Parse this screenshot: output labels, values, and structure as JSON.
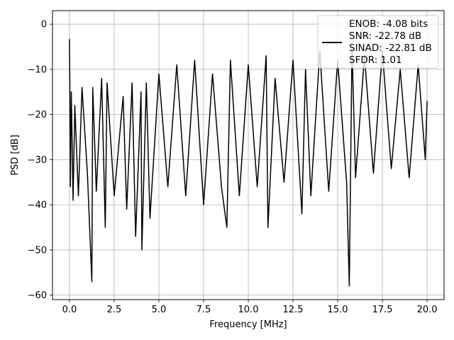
{
  "chart_data": {
    "type": "line",
    "xlabel": "Frequency [MHz]",
    "ylabel": "PSD [dB]",
    "xlim": [
      -0.95,
      20.95
    ],
    "ylim": [
      -61,
      3
    ],
    "xticks": [
      0.0,
      2.5,
      5.0,
      7.5,
      10.0,
      12.5,
      15.0,
      17.5,
      20.0
    ],
    "xtick_labels": [
      "0.0",
      "2.5",
      "5.0",
      "7.5",
      "10.0",
      "12.5",
      "15.0",
      "17.5",
      "20.0"
    ],
    "yticks": [
      0,
      -10,
      -20,
      -30,
      -40,
      -50,
      -60
    ],
    "ytick_labels": [
      "0",
      "−10",
      "−20",
      "−30",
      "−40",
      "−50",
      "−60"
    ],
    "grid": true,
    "legend_placement": "top-right",
    "legend_lines": [
      "ENOB: -4.08 bits",
      "SNR: -22.78 dB",
      "SINAD: -22.81 dB",
      "SFDR: 1.01"
    ],
    "series": [
      {
        "color": "#000000",
        "x": [
          0.0,
          0.02,
          0.05,
          0.1,
          0.2,
          0.3,
          0.5,
          0.7,
          1.0,
          1.25,
          1.3,
          1.5,
          1.8,
          2.0,
          2.1,
          2.5,
          3.0,
          3.2,
          3.5,
          3.7,
          4.0,
          4.05,
          4.3,
          4.5,
          5.0,
          5.5,
          6.0,
          6.5,
          7.0,
          7.5,
          8.0,
          8.5,
          8.8,
          9.0,
          9.5,
          10.0,
          10.5,
          11.0,
          11.1,
          11.5,
          12.0,
          12.5,
          13.0,
          13.2,
          13.5,
          14.0,
          14.5,
          15.0,
          15.5,
          15.65,
          15.8,
          16.0,
          16.5,
          17.0,
          17.5,
          18.0,
          18.5,
          19.0,
          19.5,
          19.9,
          20.0
        ],
        "y": [
          -3.3,
          -12,
          -36,
          -15,
          -39,
          -18,
          -38,
          -14,
          -33,
          -57,
          -14,
          -37,
          -12,
          -45,
          -13,
          -38,
          -16,
          -41,
          -13,
          -47,
          -15,
          -50,
          -13,
          -43,
          -11,
          -36,
          -9,
          -38,
          -8,
          -40,
          -11,
          -36,
          -45,
          -8,
          -38,
          -9,
          -36,
          -7,
          -45,
          -12,
          -35,
          -8,
          -42,
          -10,
          -38,
          -6,
          -37,
          -8,
          -35,
          -58,
          -5,
          -34,
          -7,
          -33,
          -6,
          -32,
          -10,
          -34,
          -9,
          -30,
          -17
        ]
      }
    ]
  }
}
